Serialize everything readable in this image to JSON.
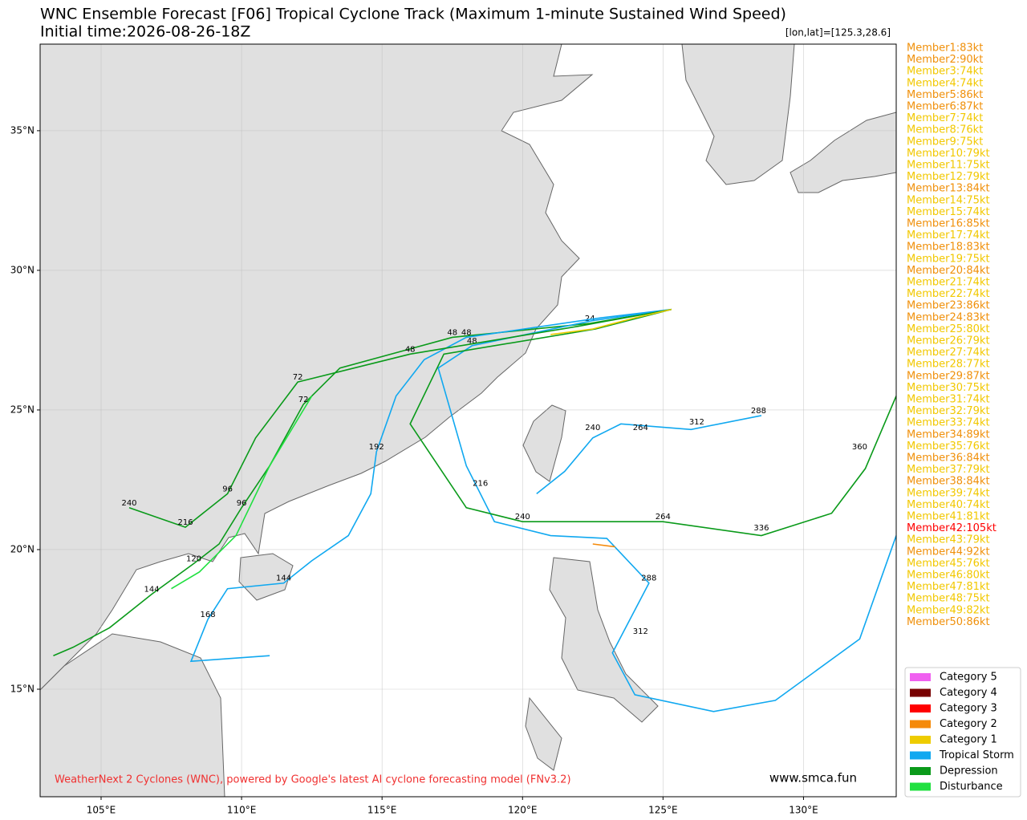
{
  "chart_data": {
    "type": "track-map",
    "title": "WNC Ensemble Forecast [F06] Tropical Cyclone Track (Maximum 1-minute Sustained Wind Speed)",
    "subtitle": "Initial time:2026-08-26-18Z",
    "position_label": "[lon,lat]=[125.3,28.6]",
    "xlim": [
      102.83,
      133.3
    ],
    "ylim": [
      11.15,
      38.1
    ],
    "xticks": [
      {
        "value": 105,
        "label": "105°E"
      },
      {
        "value": 110,
        "label": "110°E"
      },
      {
        "value": 115,
        "label": "115°E"
      },
      {
        "value": 120,
        "label": "120°E"
      },
      {
        "value": 125,
        "label": "125°E"
      },
      {
        "value": 130,
        "label": "130°E"
      }
    ],
    "yticks": [
      {
        "value": 15,
        "label": "15°N"
      },
      {
        "value": 20,
        "label": "20°N"
      },
      {
        "value": 25,
        "label": "25°N"
      },
      {
        "value": 30,
        "label": "30°N"
      },
      {
        "value": 35,
        "label": "35°N"
      }
    ],
    "grid": true,
    "members": [
      {
        "text": "Member1:83kt",
        "color": "#f0900a"
      },
      {
        "text": "Member2:90kt",
        "color": "#f0900a"
      },
      {
        "text": "Member3:74kt",
        "color": "#f2c800"
      },
      {
        "text": "Member4:74kt",
        "color": "#f2c800"
      },
      {
        "text": "Member5:86kt",
        "color": "#f0900a"
      },
      {
        "text": "Member6:87kt",
        "color": "#f0900a"
      },
      {
        "text": "Member7:74kt",
        "color": "#f2c800"
      },
      {
        "text": "Member8:76kt",
        "color": "#f2c800"
      },
      {
        "text": "Member9:75kt",
        "color": "#f2c800"
      },
      {
        "text": "Member10:79kt",
        "color": "#f2c800"
      },
      {
        "text": "Member11:75kt",
        "color": "#f2c800"
      },
      {
        "text": "Member12:79kt",
        "color": "#f2c800"
      },
      {
        "text": "Member13:84kt",
        "color": "#f0900a"
      },
      {
        "text": "Member14:75kt",
        "color": "#f2c800"
      },
      {
        "text": "Member15:74kt",
        "color": "#f2c800"
      },
      {
        "text": "Member16:85kt",
        "color": "#f0900a"
      },
      {
        "text": "Member17:74kt",
        "color": "#f2c800"
      },
      {
        "text": "Member18:83kt",
        "color": "#f0900a"
      },
      {
        "text": "Member19:75kt",
        "color": "#f2c800"
      },
      {
        "text": "Member20:84kt",
        "color": "#f0900a"
      },
      {
        "text": "Member21:74kt",
        "color": "#f2c800"
      },
      {
        "text": "Member22:74kt",
        "color": "#f2c800"
      },
      {
        "text": "Member23:86kt",
        "color": "#f0900a"
      },
      {
        "text": "Member24:83kt",
        "color": "#f0900a"
      },
      {
        "text": "Member25:80kt",
        "color": "#f2c800"
      },
      {
        "text": "Member26:79kt",
        "color": "#f2c800"
      },
      {
        "text": "Member27:74kt",
        "color": "#f2c800"
      },
      {
        "text": "Member28:77kt",
        "color": "#f2c800"
      },
      {
        "text": "Member29:87kt",
        "color": "#f0900a"
      },
      {
        "text": "Member30:75kt",
        "color": "#f2c800"
      },
      {
        "text": "Member31:74kt",
        "color": "#f2c800"
      },
      {
        "text": "Member32:79kt",
        "color": "#f2c800"
      },
      {
        "text": "Member33:74kt",
        "color": "#f2c800"
      },
      {
        "text": "Member34:89kt",
        "color": "#f0900a"
      },
      {
        "text": "Member35:76kt",
        "color": "#f2c800"
      },
      {
        "text": "Member36:84kt",
        "color": "#f0900a"
      },
      {
        "text": "Member37:79kt",
        "color": "#f2c800"
      },
      {
        "text": "Member38:84kt",
        "color": "#f0900a"
      },
      {
        "text": "Member39:74kt",
        "color": "#f2c800"
      },
      {
        "text": "Member40:74kt",
        "color": "#f2c800"
      },
      {
        "text": "Member41:81kt",
        "color": "#f2c800"
      },
      {
        "text": "Member42:105kt",
        "color": "#ff0000"
      },
      {
        "text": "Member43:79kt",
        "color": "#f2c800"
      },
      {
        "text": "Member44:92kt",
        "color": "#f0900a"
      },
      {
        "text": "Member45:76kt",
        "color": "#f2c800"
      },
      {
        "text": "Member46:80kt",
        "color": "#f2c800"
      },
      {
        "text": "Member47:81kt",
        "color": "#f2c800"
      },
      {
        "text": "Member48:75kt",
        "color": "#f2c800"
      },
      {
        "text": "Member49:82kt",
        "color": "#f2c800"
      },
      {
        "text": "Member50:86kt",
        "color": "#f0900a"
      }
    ],
    "legend": [
      {
        "name": "Category 5",
        "color": "#f060f0"
      },
      {
        "name": "Category 4",
        "color": "#780000"
      },
      {
        "name": "Category 3",
        "color": "#ff0000"
      },
      {
        "name": "Category 2",
        "color": "#f58a0a"
      },
      {
        "name": "Category 1",
        "color": "#eecc00"
      },
      {
        "name": "Tropical Storm",
        "color": "#10a8f0"
      },
      {
        "name": "Depression",
        "color": "#0a9a1a"
      },
      {
        "name": "Disturbance",
        "color": "#20e040"
      }
    ],
    "tracks": [
      {
        "color": "#0a9a1a",
        "lon": [
          125.3,
          122.4,
          117.5,
          113.5,
          112.2,
          111,
          110,
          109.2,
          108.3,
          106.8,
          105.3,
          104,
          103.3
        ],
        "lat": [
          28.6,
          28.1,
          27.6,
          26.5,
          25.2,
          23,
          21.5,
          20.2,
          19.5,
          18.4,
          17.2,
          16.5,
          16.2
        ],
        "hour_labels": [
          {
            "lon": 122.4,
            "lat": 28.1,
            "text": 24
          },
          {
            "lon": 117.5,
            "lat": 27.6,
            "text": 48
          },
          {
            "lon": 112.2,
            "lat": 25.2,
            "text": 72
          },
          {
            "lon": 110,
            "lat": 21.5,
            "text": 96
          },
          {
            "lon": 108.3,
            "lat": 19.5,
            "text": 120
          },
          {
            "lon": 106.8,
            "lat": 18.4,
            "text": 144
          }
        ]
      },
      {
        "color": "#10a8f0",
        "lon": [
          125.3,
          122.8,
          118,
          116.5,
          115.5,
          114.8,
          114.6,
          113.8,
          112.5,
          111.5,
          109.5,
          108.8,
          108.2,
          111
        ],
        "lat": [
          28.6,
          28.3,
          27.6,
          26.8,
          25.5,
          23.5,
          22,
          20.5,
          19.6,
          18.8,
          18.6,
          17.5,
          16,
          16.2
        ],
        "hour_labels": [
          {
            "lon": 118,
            "lat": 27.6,
            "text": 48
          },
          {
            "lon": 114.8,
            "lat": 23.5,
            "text": 192
          },
          {
            "lon": 111.5,
            "lat": 18.8,
            "text": 144
          },
          {
            "lon": 108.8,
            "lat": 17.5,
            "text": 168
          }
        ]
      },
      {
        "color": "#10a8f0",
        "lon": [
          125.3,
          122.5,
          118.2,
          117,
          118,
          119,
          121,
          123,
          124.5,
          123.2,
          124,
          126.8,
          129,
          132,
          133.3
        ],
        "lat": [
          28.6,
          28.2,
          27.3,
          26.5,
          23,
          21,
          20.5,
          20.4,
          18.8,
          16.3,
          14.8,
          14.2,
          14.6,
          16.8,
          20.5
        ],
        "hour_labels": [
          {
            "lon": 118.2,
            "lat": 27.3,
            "text": 48
          },
          {
            "lon": 118.5,
            "lat": 22.2,
            "text": 216
          },
          {
            "lon": 124.5,
            "lat": 18.8,
            "text": 288
          },
          {
            "lon": 124.2,
            "lat": 16.9,
            "text": 312
          }
        ]
      },
      {
        "color": "#0a9a1a",
        "lon": [
          125.3,
          122.6,
          117.2,
          116,
          118,
          120,
          125,
          128.5,
          131,
          132.2,
          133.3
        ],
        "lat": [
          28.6,
          27.9,
          27,
          24.5,
          21.5,
          21,
          21,
          20.5,
          21.3,
          22.9,
          25.5
        ],
        "hour_labels": [
          {
            "lon": 120,
            "lat": 21,
            "text": 240
          },
          {
            "lon": 125,
            "lat": 21,
            "text": 264
          },
          {
            "lon": 128.5,
            "lat": 20.6,
            "text": 336
          },
          {
            "lon": 132,
            "lat": 23.5,
            "text": 360
          }
        ]
      },
      {
        "color": "#10a8f0",
        "lon": [
          120.5,
          121.5,
          122.5,
          123.5,
          126,
          128.5
        ],
        "lat": [
          22,
          22.8,
          24,
          24.5,
          24.3,
          24.8
        ],
        "hour_labels": [
          {
            "lon": 122.5,
            "lat": 24.2,
            "text": 240
          },
          {
            "lon": 124.2,
            "lat": 24.2,
            "text": 264
          },
          {
            "lon": 126.2,
            "lat": 24.4,
            "text": 312
          },
          {
            "lon": 128.4,
            "lat": 24.8,
            "text": 288
          }
        ]
      },
      {
        "color": "#0a9a1a",
        "lon": [
          125.3,
          122,
          116,
          112,
          110.5,
          109.5,
          108,
          106
        ],
        "lat": [
          28.6,
          28,
          27,
          26,
          24,
          22,
          20.8,
          21.5
        ],
        "hour_labels": [
          {
            "lon": 116,
            "lat": 27,
            "text": 48
          },
          {
            "lon": 112,
            "lat": 26,
            "text": 72
          },
          {
            "lon": 109.5,
            "lat": 22,
            "text": 96
          },
          {
            "lon": 108,
            "lat": 20.8,
            "text": 216
          },
          {
            "lon": 106,
            "lat": 21.5,
            "text": 240
          }
        ]
      },
      {
        "color": "#20e040",
        "lon": [
          112.5,
          111,
          109.8,
          108.5,
          107.5
        ],
        "lat": [
          25.5,
          23,
          20.5,
          19.2,
          18.6
        ],
        "hour_labels": []
      },
      {
        "color": "#eecc00",
        "lon": [
          125.3,
          124,
          122.5,
          121
        ],
        "lat": [
          28.6,
          28.3,
          27.9,
          27.7
        ],
        "hour_labels": []
      },
      {
        "color": "#f58a0a",
        "lon": [
          122.5,
          123.3
        ],
        "lat": [
          20.2,
          20.1
        ],
        "hour_labels": []
      }
    ],
    "footer": "WeatherNext 2 Cyclones (WNC), powered by Google's latest AI cyclone forecasting model (FNv3.2)",
    "site": "www.smca.fun"
  }
}
